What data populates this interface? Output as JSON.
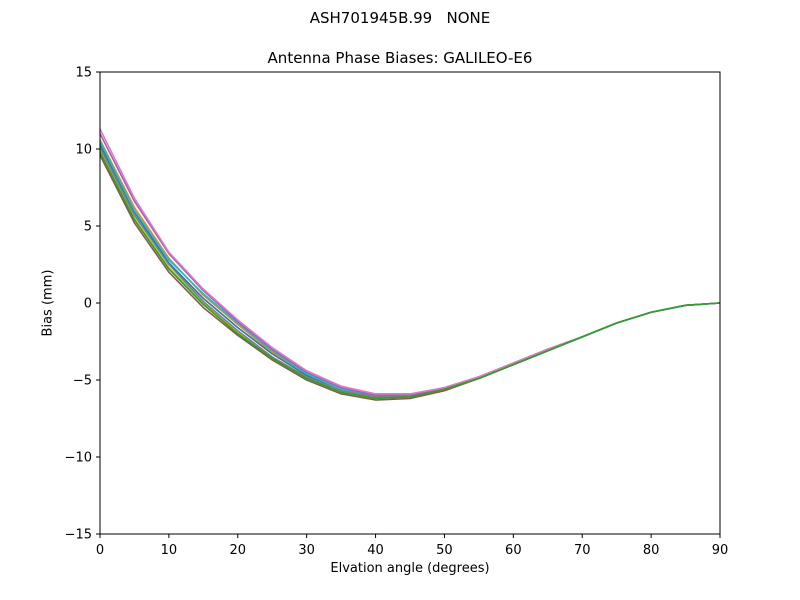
{
  "figure": {
    "suptitle": "ASH701945B.99   NONE"
  },
  "chart_data": {
    "type": "line",
    "title": "Antenna Phase Biases: GALILEO-E6",
    "xlabel": "Elvation angle (degrees)",
    "ylabel": "Bias (mm)",
    "xlim": [
      0,
      90
    ],
    "ylim": [
      -15,
      15
    ],
    "xticks": [
      0,
      10,
      20,
      30,
      40,
      50,
      60,
      70,
      80,
      90
    ],
    "yticks": [
      -15,
      -10,
      -5,
      0,
      5,
      10,
      15
    ],
    "grid": false,
    "legend": "none",
    "x": [
      0,
      5,
      10,
      15,
      20,
      25,
      30,
      35,
      40,
      45,
      50,
      55,
      60,
      65,
      70,
      75,
      80,
      85,
      90
    ],
    "series": [
      {
        "color": "#8c564b",
        "values": [
          9.6,
          5.2,
          2.0,
          -0.3,
          -2.1,
          -3.7,
          -5.0,
          -5.9,
          -6.3,
          -6.2,
          -5.7,
          -4.9,
          -4.0,
          -3.1,
          -2.2,
          -1.3,
          -0.6,
          -0.15,
          0.0
        ]
      },
      {
        "color": "#bcbd22",
        "values": [
          9.9,
          5.5,
          2.3,
          0.0,
          -1.9,
          -3.6,
          -4.9,
          -5.8,
          -6.2,
          -6.1,
          -5.6,
          -4.9,
          -4.0,
          -3.1,
          -2.2,
          -1.3,
          -0.6,
          -0.15,
          0.0
        ]
      },
      {
        "color": "#1f77b4",
        "values": [
          10.3,
          5.9,
          2.6,
          0.3,
          -1.6,
          -3.3,
          -4.7,
          -5.6,
          -6.1,
          -6.0,
          -5.6,
          -4.8,
          -4.0,
          -3.1,
          -2.2,
          -1.3,
          -0.6,
          -0.15,
          0.0
        ]
      },
      {
        "color": "#ff7f0e",
        "values": [
          10.6,
          6.2,
          2.9,
          0.5,
          -1.4,
          -3.2,
          -4.6,
          -5.6,
          -6.0,
          -6.0,
          -5.5,
          -4.8,
          -3.9,
          -3.0,
          -2.2,
          -1.3,
          -0.6,
          -0.15,
          0.0
        ]
      },
      {
        "color": "#17becf",
        "values": [
          10.5,
          6.0,
          2.8,
          0.6,
          -1.3,
          -3.1,
          -4.6,
          -5.6,
          -6.0,
          -6.0,
          -5.5,
          -4.8,
          -3.9,
          -3.0,
          -2.2,
          -1.3,
          -0.6,
          -0.15,
          0.0
        ]
      },
      {
        "color": "#9467bd",
        "values": [
          11.0,
          6.6,
          3.2,
          0.8,
          -1.2,
          -3.0,
          -4.5,
          -5.5,
          -6.0,
          -6.0,
          -5.5,
          -4.8,
          -3.9,
          -3.0,
          -2.2,
          -1.3,
          -0.6,
          -0.15,
          0.0
        ]
      },
      {
        "color": "#e377c2",
        "values": [
          11.3,
          6.8,
          3.3,
          0.9,
          -1.1,
          -2.9,
          -4.4,
          -5.4,
          -5.9,
          -5.9,
          -5.5,
          -4.8,
          -3.9,
          -3.0,
          -2.2,
          -1.3,
          -0.6,
          -0.15,
          0.0
        ]
      },
      {
        "color": "#7f7f7f",
        "values": [
          10.1,
          5.7,
          2.5,
          0.1,
          -1.8,
          -3.5,
          -4.8,
          -5.7,
          -6.1,
          -6.1,
          -5.6,
          -4.9,
          -4.0,
          -3.1,
          -2.2,
          -1.3,
          -0.6,
          -0.15,
          0.0
        ]
      },
      {
        "color": "#2ca02c",
        "values": [
          9.8,
          5.4,
          2.2,
          -0.1,
          -2.0,
          -3.6,
          -4.9,
          -5.8,
          -6.2,
          -6.1,
          -5.6,
          -4.9,
          -4.0,
          -3.1,
          -2.2,
          -1.3,
          -0.6,
          -0.15,
          0.0
        ]
      }
    ]
  }
}
